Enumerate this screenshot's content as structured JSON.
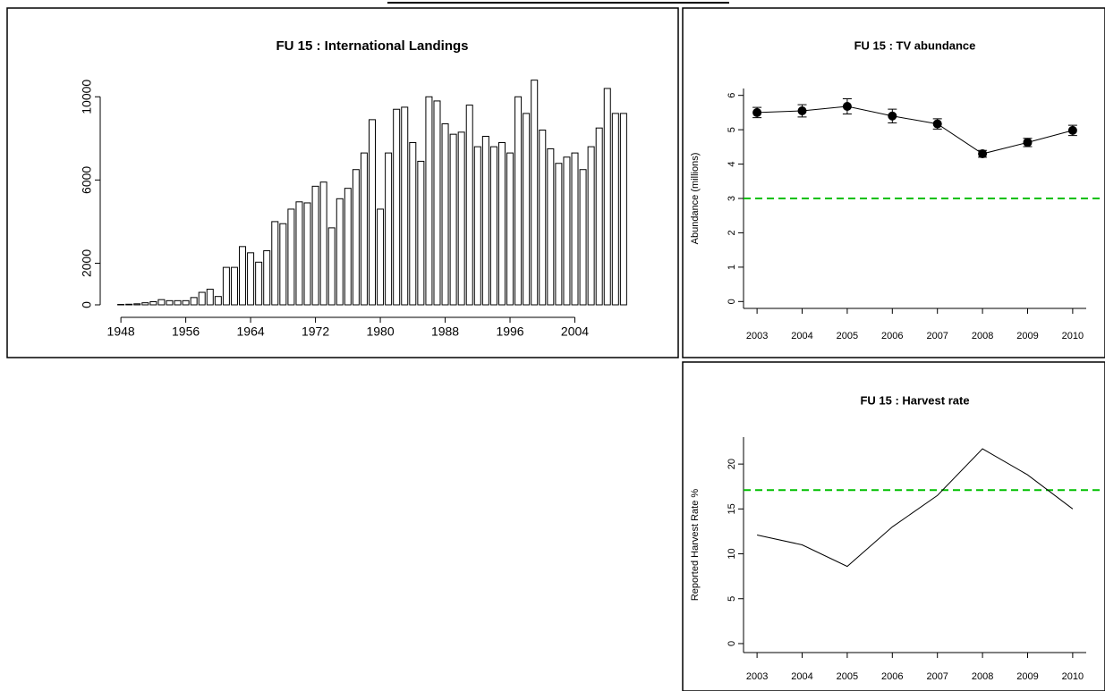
{
  "chart_data": [
    {
      "type": "bar",
      "title": "FU 15 : International Landings",
      "x": [
        1948,
        1949,
        1950,
        1951,
        1952,
        1953,
        1954,
        1955,
        1956,
        1957,
        1958,
        1959,
        1960,
        1961,
        1962,
        1963,
        1964,
        1965,
        1966,
        1967,
        1968,
        1969,
        1970,
        1971,
        1972,
        1973,
        1974,
        1975,
        1976,
        1977,
        1978,
        1979,
        1980,
        1981,
        1982,
        1983,
        1984,
        1985,
        1986,
        1987,
        1988,
        1989,
        1990,
        1991,
        1992,
        1993,
        1994,
        1995,
        1996,
        1997,
        1998,
        1999,
        2000,
        2001,
        2002,
        2003,
        2004,
        2005,
        2006,
        2007,
        2008,
        2009,
        2010
      ],
      "values": [
        20,
        30,
        50,
        100,
        150,
        250,
        200,
        200,
        200,
        350,
        600,
        750,
        400,
        1800,
        1800,
        2800,
        2500,
        2050,
        2600,
        4000,
        3900,
        4600,
        4950,
        4900,
        5700,
        5900,
        3700,
        5100,
        5600,
        6500,
        7300,
        8900,
        4600,
        7300,
        9400,
        9500,
        7800,
        6900,
        10000,
        9800,
        8700,
        8200,
        8300,
        9600,
        7600,
        8100,
        7600,
        7800,
        7300,
        10000,
        9200,
        10800,
        8400,
        7500,
        6800,
        7100,
        7300,
        6500,
        7600,
        8500,
        10400,
        9200,
        9200
      ],
      "color": "#ffffff",
      "xlim": [
        1946,
        2012
      ],
      "xticks": [
        1948,
        1956,
        1964,
        1972,
        1980,
        1988,
        1996,
        2004
      ],
      "ylim": [
        0,
        11000
      ],
      "yticks": [
        0,
        2000,
        6000,
        10000
      ]
    },
    {
      "type": "line",
      "title": "FU 15  :  TV abundance",
      "y_label": "Abundance (millions)",
      "x": [
        2003,
        2004,
        2005,
        2006,
        2007,
        2008,
        2009,
        2010
      ],
      "values": [
        5.5,
        5.55,
        5.68,
        5.4,
        5.17,
        4.3,
        4.63,
        4.98
      ],
      "errors": [
        0.15,
        0.18,
        0.22,
        0.2,
        0.15,
        0.1,
        0.12,
        0.15
      ],
      "markers": true,
      "color": "#000000",
      "reference_line": 3,
      "reference_color": "#00c000",
      "xlim": [
        2002.7,
        2010.3
      ],
      "xticks": [
        2003,
        2004,
        2005,
        2006,
        2007,
        2008,
        2009,
        2010
      ],
      "ylim": [
        -0.2,
        6.2
      ],
      "yticks": [
        0,
        1,
        2,
        3,
        4,
        5,
        6
      ]
    },
    {
      "type": "line",
      "title": "FU 15  :  Harvest rate",
      "y_label": "Reported Harvest Rate %",
      "x": [
        2003,
        2004,
        2005,
        2006,
        2007,
        2008,
        2009,
        2010
      ],
      "values": [
        12.1,
        11,
        8.6,
        13,
        16.5,
        21.7,
        18.8,
        15
      ],
      "markers": false,
      "color": "#000000",
      "reference_line": 17.1,
      "reference_color": "#00c000",
      "xlim": [
        2002.7,
        2010.3
      ],
      "xticks": [
        2003,
        2004,
        2005,
        2006,
        2007,
        2008,
        2009,
        2010
      ],
      "ylim": [
        -1,
        23
      ],
      "yticks": [
        0,
        5,
        10,
        15,
        20
      ]
    }
  ]
}
